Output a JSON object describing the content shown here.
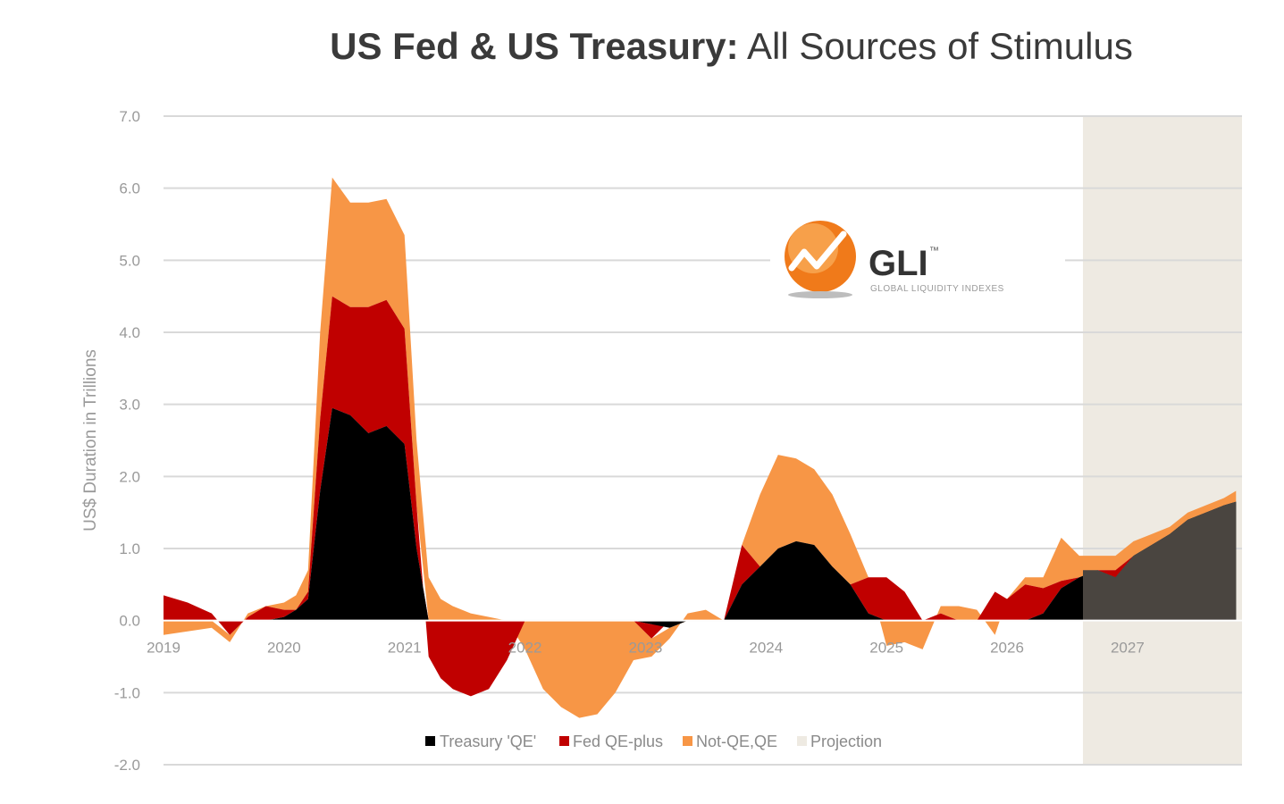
{
  "title": {
    "bold": "US Fed & US Treasury:",
    "light": "All Sources of Stimulus"
  },
  "logo": {
    "name": "GLI",
    "tm": "™",
    "subtitle": "GLOBAL LIQUIDITY INDEXES"
  },
  "colors": {
    "treasury": "#000000",
    "fed": "#c00000",
    "notqe": "#f79646",
    "projection": "#eeeae2",
    "grid": "#d9d9d9",
    "projection_area": "#4a4540"
  },
  "chart_data": {
    "type": "area",
    "title": "US Fed & US Treasury: All Sources of Stimulus",
    "ylabel": "US$ Duration in Trillions",
    "xlabel": "",
    "ylim": [
      -2.0,
      7.0
    ],
    "xlim": [
      2019.0,
      2027.95
    ],
    "yticks": [
      "7.0",
      "6.0",
      "5.0",
      "4.0",
      "3.0",
      "2.0",
      "1.0",
      "0.0",
      "-1.0",
      "-2.0"
    ],
    "xticks": [
      "2019",
      "2020",
      "2021",
      "2022",
      "2023",
      "2024",
      "2025",
      "2026",
      "2027"
    ],
    "projection_start": 2026.63,
    "legend": [
      "Treasury 'QE'",
      "Fed QE-plus",
      "Not-QE,QE",
      "Projection"
    ],
    "legend_position": "bottom",
    "grid": true,
    "x": [
      2019.0,
      2019.2,
      2019.4,
      2019.55,
      2019.7,
      2019.85,
      2020.0,
      2020.1,
      2020.2,
      2020.3,
      2020.4,
      2020.55,
      2020.7,
      2020.85,
      2021.0,
      2021.1,
      2021.2,
      2021.3,
      2021.4,
      2021.55,
      2021.7,
      2021.85,
      2022.0,
      2022.15,
      2022.3,
      2022.45,
      2022.6,
      2022.75,
      2022.9,
      2023.05,
      2023.2,
      2023.35,
      2023.5,
      2023.65,
      2023.8,
      2023.95,
      2024.1,
      2024.25,
      2024.4,
      2024.55,
      2024.7,
      2024.85,
      2025.0,
      2025.15,
      2025.3,
      2025.45,
      2025.6,
      2025.75,
      2025.9,
      2026.0,
      2026.15,
      2026.3,
      2026.45,
      2026.6,
      2026.75,
      2026.9,
      2027.05,
      2027.2,
      2027.35,
      2027.5,
      2027.65,
      2027.8,
      2027.9
    ],
    "series": [
      {
        "name": "Treasury 'QE'",
        "values": [
          0.0,
          0.0,
          0.0,
          0.0,
          0.0,
          0.0,
          0.05,
          0.15,
          0.3,
          1.8,
          2.95,
          2.85,
          2.6,
          2.7,
          2.45,
          1.0,
          0.0,
          0.0,
          0.0,
          0.0,
          0.0,
          0.0,
          0.0,
          0.0,
          0.0,
          0.0,
          0.0,
          0.0,
          0.0,
          -0.05,
          -0.1,
          0.0,
          0.0,
          0.0,
          0.5,
          0.75,
          1.0,
          1.1,
          1.05,
          0.75,
          0.5,
          0.1,
          0.0,
          0.0,
          0.0,
          0.0,
          0.0,
          0.0,
          0.0,
          0.0,
          0.0,
          0.1,
          0.45,
          0.6,
          0.7,
          0.6,
          0.9,
          1.05,
          1.2,
          1.4,
          1.5,
          1.6,
          1.65
        ]
      },
      {
        "name": "Fed QE-plus",
        "values": [
          0.35,
          0.25,
          0.1,
          -0.2,
          0.05,
          0.2,
          0.1,
          0.0,
          0.1,
          1.0,
          1.55,
          1.5,
          1.75,
          1.75,
          1.6,
          0.6,
          -0.5,
          -0.8,
          -0.95,
          -1.05,
          -0.95,
          -0.55,
          0.0,
          0.0,
          0.0,
          0.0,
          0.0,
          0.0,
          0.0,
          -0.2,
          0.0,
          0.0,
          0.0,
          0.0,
          0.55,
          0.0,
          0.0,
          0.0,
          0.0,
          0.0,
          0.0,
          0.5,
          0.6,
          0.4,
          0.0,
          0.1,
          0.0,
          0.0,
          0.4,
          0.3,
          0.5,
          0.35,
          0.1,
          0.0,
          0.0,
          0.1,
          0.0,
          0.0,
          0.0,
          0.0,
          0.0,
          0.0,
          0.0
        ]
      },
      {
        "name": "Not-QE,QE",
        "values": [
          -0.2,
          -0.15,
          -0.1,
          -0.1,
          0.05,
          0.0,
          0.1,
          0.2,
          0.3,
          1.2,
          1.65,
          1.45,
          1.45,
          1.4,
          1.3,
          0.9,
          0.6,
          0.3,
          0.2,
          0.1,
          0.05,
          0.0,
          -0.4,
          -0.95,
          -1.2,
          -1.35,
          -1.3,
          -1.0,
          -0.55,
          -0.25,
          -0.15,
          0.1,
          0.15,
          0.0,
          0.0,
          1.0,
          1.3,
          1.15,
          1.05,
          1.0,
          0.7,
          0.0,
          -0.35,
          -0.3,
          -0.4,
          0.1,
          0.2,
          0.15,
          -0.2,
          0.0,
          0.1,
          0.15,
          0.6,
          0.3,
          0.2,
          0.2,
          0.2,
          0.15,
          0.1,
          0.1,
          0.1,
          0.1,
          0.15
        ]
      }
    ]
  }
}
